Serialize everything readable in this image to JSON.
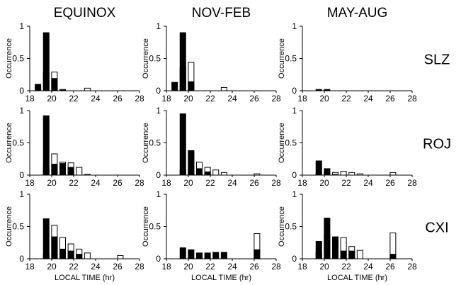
{
  "figure": {
    "columns": [
      "EQUINOX",
      "NOV-FEB",
      "MAY-AUG"
    ],
    "rows": [
      "SLZ",
      "ROJ",
      "CXI"
    ],
    "ylabel": "Occurrence",
    "xlabel": "LOCAL TIME (hr)",
    "xticks": [
      "18",
      "20",
      "22",
      "24",
      "26",
      "28"
    ],
    "yticks": [
      "0",
      "0.5",
      "1"
    ],
    "colors": {
      "filled": "#000000",
      "open": "#ffffff",
      "stroke": "#000000"
    }
  },
  "chart_data": [
    {
      "type": "bar",
      "panel": "SLZ EQUINOX",
      "x": [
        18.75,
        19.5,
        20.25,
        21,
        21.75,
        22.5,
        23.25
      ],
      "series": [
        {
          "name": "filled",
          "values": [
            0.1,
            0.9,
            0.19,
            0.01,
            0.0,
            0.0,
            0.0
          ]
        },
        {
          "name": "open",
          "values": [
            0.0,
            0.29,
            0.29,
            0.02,
            0.0,
            0.0,
            0.04
          ]
        }
      ],
      "xlim": [
        18,
        28
      ],
      "ylim": [
        0,
        1
      ]
    },
    {
      "type": "bar",
      "panel": "SLZ NOV-FEB",
      "x": [
        18.75,
        19.5,
        20.25,
        23.25
      ],
      "series": [
        {
          "name": "filled",
          "values": [
            0.13,
            0.9,
            0.14,
            0.0
          ]
        },
        {
          "name": "open",
          "values": [
            0.0,
            0.37,
            0.44,
            0.05
          ]
        }
      ],
      "xlim": [
        18,
        28
      ],
      "ylim": [
        0,
        1
      ]
    },
    {
      "type": "bar",
      "panel": "SLZ MAY-AUG",
      "x": [
        19.5,
        20.25
      ],
      "series": [
        {
          "name": "filled",
          "values": [
            0.02,
            0.02
          ]
        },
        {
          "name": "open",
          "values": [
            0.0,
            0.0
          ]
        }
      ],
      "xlim": [
        18,
        28
      ],
      "ylim": [
        0,
        1
      ]
    },
    {
      "type": "bar",
      "panel": "ROJ EQUINOX",
      "x": [
        19.5,
        20.25,
        21,
        21.75,
        22.5,
        23.25
      ],
      "series": [
        {
          "name": "filled",
          "values": [
            0.92,
            0.17,
            0.18,
            0.12,
            0.0,
            0.0
          ]
        },
        {
          "name": "open",
          "values": [
            0.12,
            0.33,
            0.2,
            0.19,
            0.12,
            0.01
          ]
        }
      ],
      "xlim": [
        18,
        28
      ],
      "ylim": [
        0,
        1
      ]
    },
    {
      "type": "bar",
      "panel": "ROJ NOV-FEB",
      "x": [
        19.5,
        20.25,
        21,
        21.75,
        22.5,
        23.25,
        26.25
      ],
      "series": [
        {
          "name": "filled",
          "values": [
            0.95,
            0.38,
            0.1,
            0.05,
            0.0,
            0.0,
            0.0
          ]
        },
        {
          "name": "open",
          "values": [
            0.08,
            0.37,
            0.2,
            0.12,
            0.08,
            0.04,
            0.02
          ]
        }
      ],
      "xlim": [
        18,
        28
      ],
      "ylim": [
        0,
        1
      ]
    },
    {
      "type": "bar",
      "panel": "ROJ MAY-AUG",
      "x": [
        19.5,
        20.25,
        21,
        21.75,
        22.5,
        23.25,
        26.25
      ],
      "series": [
        {
          "name": "filled",
          "values": [
            0.22,
            0.1,
            0.01,
            0.0,
            0.0,
            0.0,
            0.0
          ]
        },
        {
          "name": "open",
          "values": [
            0.03,
            0.05,
            0.04,
            0.06,
            0.04,
            0.02,
            0.04
          ]
        }
      ],
      "xlim": [
        18,
        28
      ],
      "ylim": [
        0,
        1
      ]
    },
    {
      "type": "bar",
      "panel": "CXI EQUINOX",
      "x": [
        19.5,
        20.25,
        21,
        21.75,
        22.5,
        23.25,
        26.25
      ],
      "series": [
        {
          "name": "filled",
          "values": [
            0.62,
            0.34,
            0.15,
            0.12,
            0.07,
            0.0,
            0.0
          ]
        },
        {
          "name": "open",
          "values": [
            0.07,
            0.52,
            0.33,
            0.23,
            0.15,
            0.09,
            0.05
          ]
        }
      ],
      "xlim": [
        18,
        28
      ],
      "ylim": [
        0,
        1
      ]
    },
    {
      "type": "bar",
      "panel": "CXI NOV-FEB",
      "x": [
        19.5,
        20.25,
        21,
        21.75,
        22.5,
        23.25,
        26.25
      ],
      "series": [
        {
          "name": "filled",
          "values": [
            0.17,
            0.14,
            0.09,
            0.09,
            0.1,
            0.1,
            0.14
          ]
        },
        {
          "name": "open",
          "values": [
            0.0,
            0.0,
            0.0,
            0.0,
            0.0,
            0.0,
            0.39
          ]
        }
      ],
      "xlim": [
        18,
        28
      ],
      "ylim": [
        0,
        1
      ]
    },
    {
      "type": "bar",
      "panel": "CXI MAY-AUG",
      "x": [
        19.5,
        20.25,
        21,
        21.75,
        22.5,
        23.25,
        26.25
      ],
      "series": [
        {
          "name": "filled",
          "values": [
            0.27,
            0.63,
            0.34,
            0.12,
            0.12,
            0.0,
            0.07
          ]
        },
        {
          "name": "open",
          "values": [
            0.1,
            0.38,
            0.33,
            0.33,
            0.19,
            0.13,
            0.4
          ]
        }
      ],
      "xlim": [
        18,
        28
      ],
      "ylim": [
        0,
        1
      ]
    }
  ]
}
